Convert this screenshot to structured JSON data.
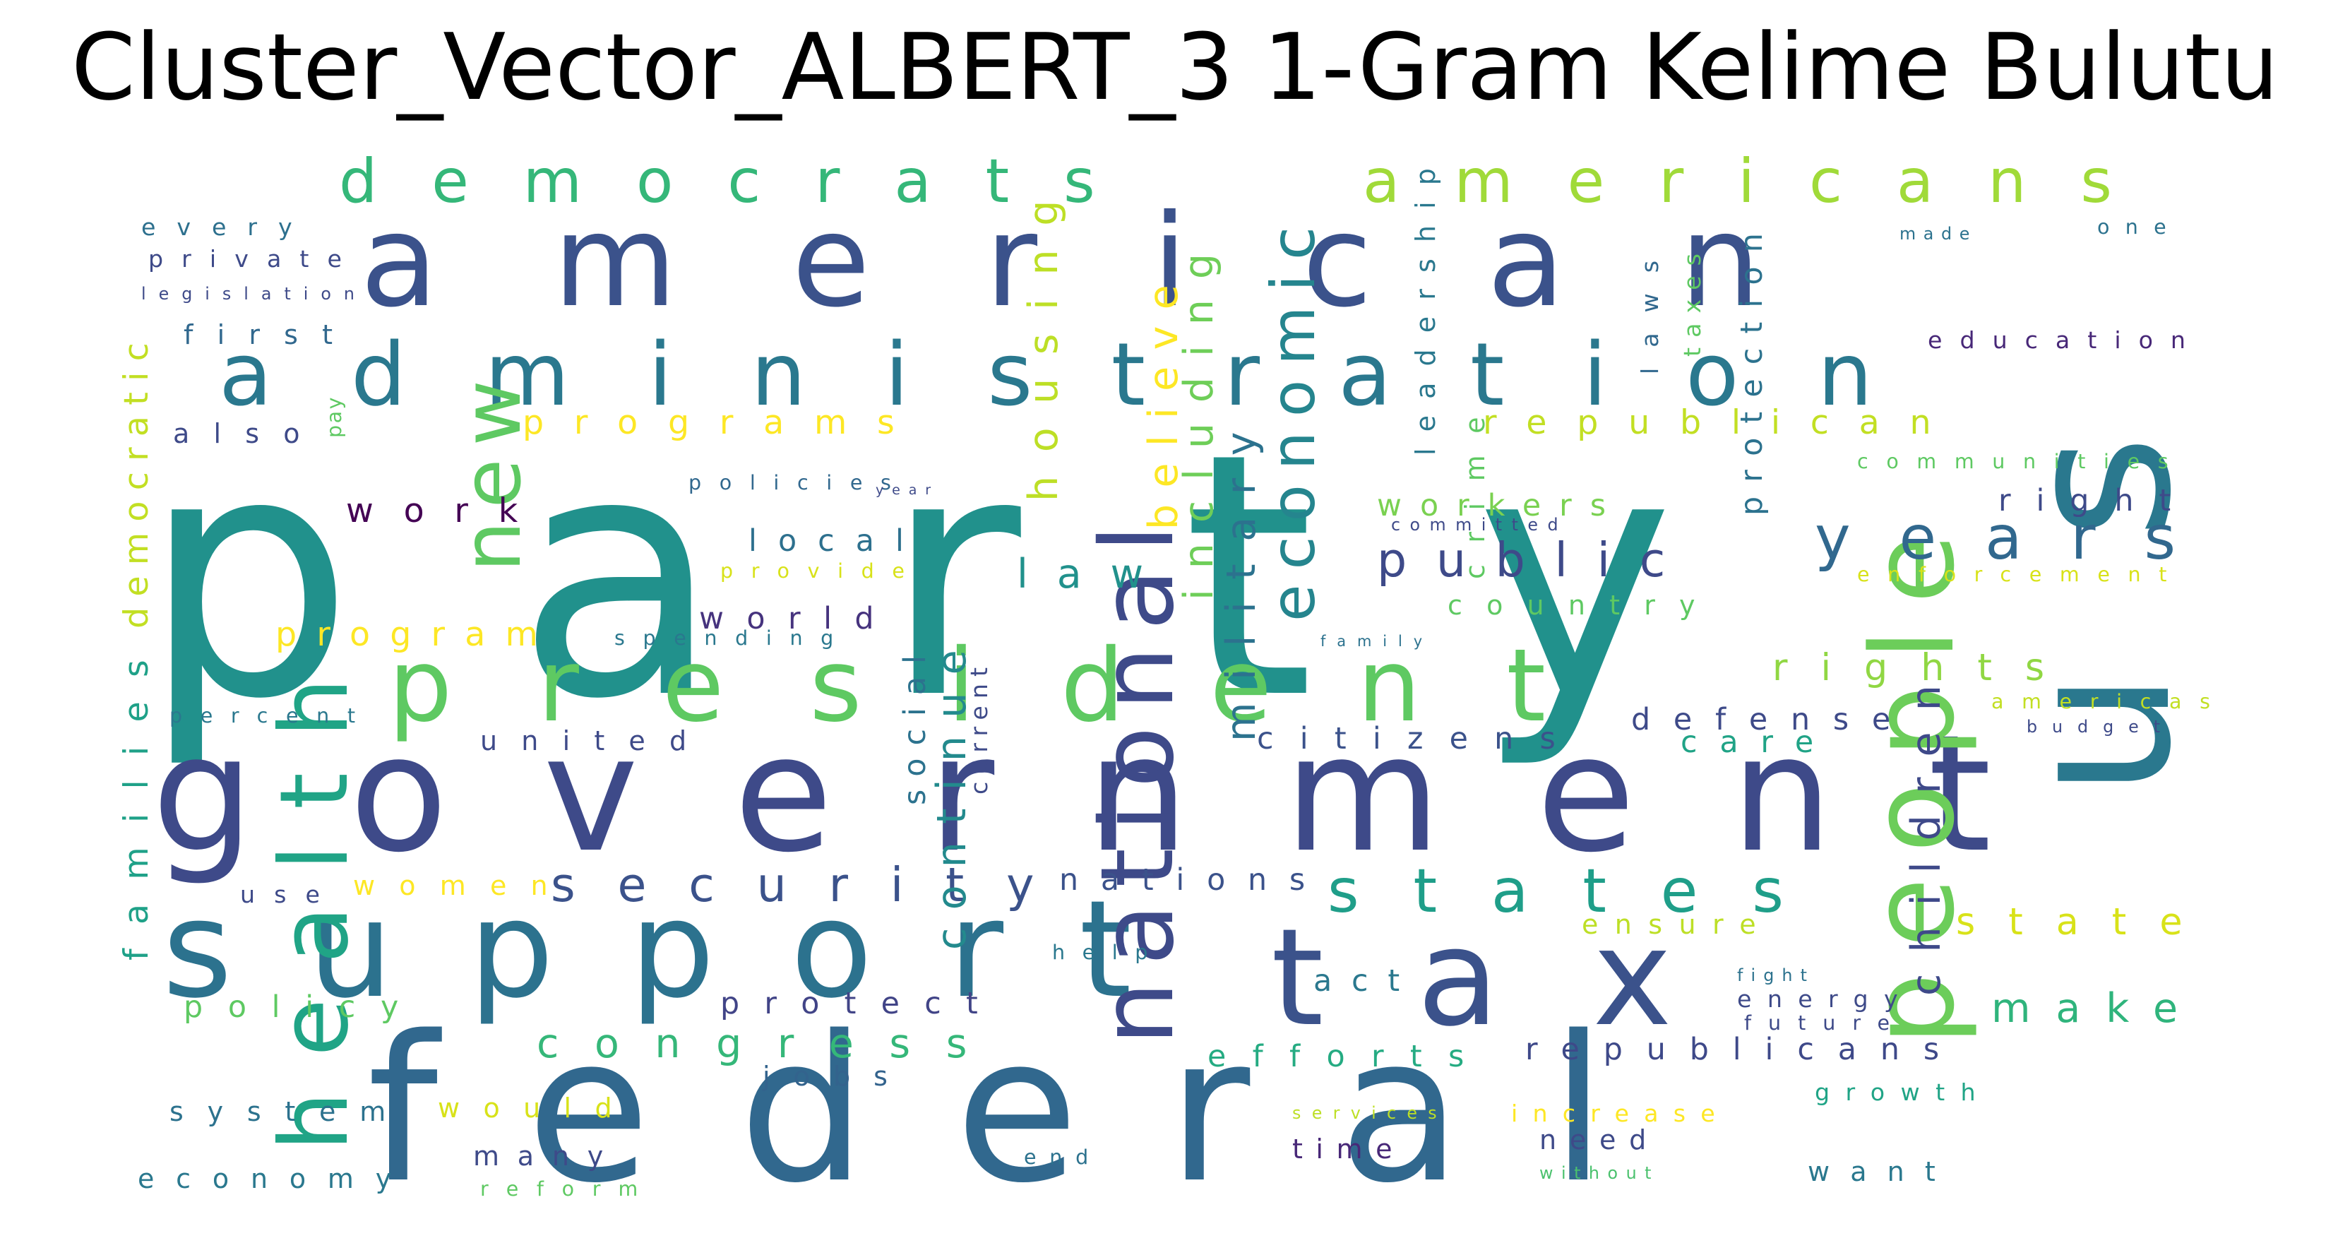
{
  "title": "Cluster_Vector_ALBERT_3 1-Gram Kelime Bulutu",
  "colors": {
    "background": "#ffffff",
    "title": "#000000",
    "palette": "viridis"
  },
  "words": [
    {
      "text": "party",
      "color": "#21918c"
    },
    {
      "text": "federal",
      "color": "#31688e"
    },
    {
      "text": "american",
      "color": "#3b528b"
    },
    {
      "text": "government",
      "color": "#3e4a89"
    },
    {
      "text": "president",
      "color": "#5ec962"
    },
    {
      "text": "administration",
      "color": "#2a788e"
    },
    {
      "text": "support",
      "color": "#2c728e"
    },
    {
      "text": "tax",
      "color": "#3b528b"
    },
    {
      "text": "us",
      "color": "#2a788e"
    },
    {
      "text": "national",
      "color": "#3e4a89"
    },
    {
      "text": "people",
      "color": "#6ccd5a"
    },
    {
      "text": "democrats",
      "color": "#35b779"
    },
    {
      "text": "americans",
      "color": "#a0da39"
    },
    {
      "text": "new",
      "color": "#5ec962"
    },
    {
      "text": "health",
      "color": "#20a486"
    },
    {
      "text": "states",
      "color": "#1f9e89"
    },
    {
      "text": "security",
      "color": "#3b528b"
    },
    {
      "text": "years",
      "color": "#31688e"
    },
    {
      "text": "public",
      "color": "#3e4a89"
    },
    {
      "text": "economic",
      "color": "#25858e"
    },
    {
      "text": "law",
      "color": "#21918c"
    },
    {
      "text": "programs",
      "color": "#fde725"
    },
    {
      "text": "republican",
      "color": "#c2df23"
    },
    {
      "text": "congress",
      "color": "#35b779"
    },
    {
      "text": "make",
      "color": "#2fb47c"
    },
    {
      "text": "rights",
      "color": "#90d743"
    },
    {
      "text": "state",
      "color": "#d8e219"
    },
    {
      "text": "work",
      "color": "#440154"
    },
    {
      "text": "program",
      "color": "#fde725"
    },
    {
      "text": "housing",
      "color": "#bddf26"
    },
    {
      "text": "including",
      "color": "#6ece58"
    },
    {
      "text": "believe",
      "color": "#fde725"
    },
    {
      "text": "military",
      "color": "#2c728e"
    },
    {
      "text": "local",
      "color": "#2d708e"
    },
    {
      "text": "world",
      "color": "#46337e"
    },
    {
      "text": "continue",
      "color": "#238a8d"
    },
    {
      "text": "children",
      "color": "#3e4989"
    },
    {
      "text": "citizens",
      "color": "#3b528b"
    },
    {
      "text": "defense",
      "color": "#3e4a89"
    },
    {
      "text": "care",
      "color": "#20a386"
    },
    {
      "text": "workers",
      "color": "#7ad151"
    },
    {
      "text": "country",
      "color": "#5ec962"
    },
    {
      "text": "united",
      "color": "#3e4a89"
    },
    {
      "text": "nations",
      "color": "#3b528b"
    },
    {
      "text": "women",
      "color": "#fde725"
    },
    {
      "text": "policy",
      "color": "#5ec962"
    },
    {
      "text": "protect",
      "color": "#414487"
    },
    {
      "text": "republicans",
      "color": "#3e4989"
    },
    {
      "text": "efforts",
      "color": "#25ab82"
    },
    {
      "text": "act",
      "color": "#2a788e"
    },
    {
      "text": "ensure",
      "color": "#bddf26"
    },
    {
      "text": "system",
      "color": "#2c728e"
    },
    {
      "text": "would",
      "color": "#d8e219"
    },
    {
      "text": "jobs",
      "color": "#33638d"
    },
    {
      "text": "many",
      "color": "#3e4a89"
    },
    {
      "text": "economy",
      "color": "#2a788e"
    },
    {
      "text": "reform",
      "color": "#5ec962"
    },
    {
      "text": "time",
      "color": "#482878"
    },
    {
      "text": "need",
      "color": "#3e4a89"
    },
    {
      "text": "want",
      "color": "#2a788e"
    },
    {
      "text": "growth",
      "color": "#20a486"
    },
    {
      "text": "increase",
      "color": "#fde725"
    },
    {
      "text": "services",
      "color": "#bddf26"
    },
    {
      "text": "end",
      "color": "#2c728e"
    },
    {
      "text": "without",
      "color": "#4ac16d"
    },
    {
      "text": "every",
      "color": "#2d708e"
    },
    {
      "text": "private",
      "color": "#3e4a89"
    },
    {
      "text": "legislation",
      "color": "#3e4a89"
    },
    {
      "text": "first",
      "color": "#31688e"
    },
    {
      "text": "also",
      "color": "#3e4a89"
    },
    {
      "text": "pay",
      "color": "#5ec962"
    },
    {
      "text": "democratic",
      "color": "#c2df23"
    },
    {
      "text": "families",
      "color": "#1fa188"
    },
    {
      "text": "percent",
      "color": "#2a788e"
    },
    {
      "text": "use",
      "color": "#3e4a89"
    },
    {
      "text": "policies",
      "color": "#31688e"
    },
    {
      "text": "year",
      "color": "#3e4a89"
    },
    {
      "text": "provide",
      "color": "#d8e219"
    },
    {
      "text": "spending",
      "color": "#2a788e"
    },
    {
      "text": "social",
      "color": "#2c728e"
    },
    {
      "text": "current",
      "color": "#3e4a89"
    },
    {
      "text": "help",
      "color": "#2a788e"
    },
    {
      "text": "leadership",
      "color": "#2a788e"
    },
    {
      "text": "crime",
      "color": "#5ec962"
    },
    {
      "text": "laws",
      "color": "#31688e"
    },
    {
      "text": "taxes",
      "color": "#5ec962"
    },
    {
      "text": "protection",
      "color": "#2c728e"
    },
    {
      "text": "made",
      "color": "#2c728e"
    },
    {
      "text": "one",
      "color": "#2c728e"
    },
    {
      "text": "education",
      "color": "#482878"
    },
    {
      "text": "communities",
      "color": "#5ec962"
    },
    {
      "text": "right",
      "color": "#3e4a89"
    },
    {
      "text": "committed",
      "color": "#3e4a89"
    },
    {
      "text": "enforcement",
      "color": "#d8e219"
    },
    {
      "text": "family",
      "color": "#2c728e"
    },
    {
      "text": "americas",
      "color": "#c2df23"
    },
    {
      "text": "budget",
      "color": "#3e4a89"
    },
    {
      "text": "fight",
      "color": "#2c728e"
    },
    {
      "text": "energy",
      "color": "#3e4a89"
    },
    {
      "text": "future",
      "color": "#3e4a89"
    }
  ]
}
